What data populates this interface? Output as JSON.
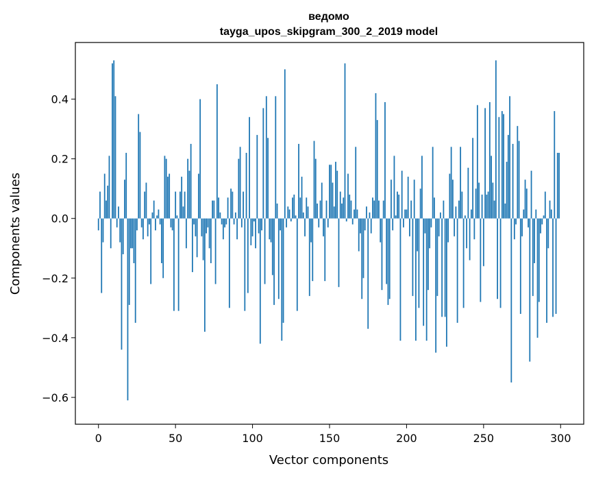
{
  "chart_data": {
    "type": "bar",
    "title": "ведомо",
    "subtitle": "tayga_upos_skipgram_300_2_2019 model",
    "xlabel": "Vector components",
    "ylabel": "Components values",
    "xlim": [
      -15,
      315
    ],
    "ylim": [
      -0.69,
      0.59
    ],
    "xticks": [
      0,
      50,
      100,
      150,
      200,
      250,
      300
    ],
    "xtick_labels": [
      "0",
      "50",
      "100",
      "150",
      "200",
      "250",
      "300"
    ],
    "yticks": [
      -0.6,
      -0.4,
      -0.2,
      0.0,
      0.2,
      0.4
    ],
    "ytick_labels": [
      "−0.6",
      "−0.4",
      "−0.2",
      "0.0",
      "0.2",
      "0.4"
    ],
    "grid": false,
    "bar_color": "#1f77b4",
    "x_start": 0,
    "values": [
      -0.04,
      0.09,
      -0.25,
      -0.08,
      0.15,
      0.06,
      0.11,
      0.21,
      -0.1,
      0.52,
      0.53,
      0.41,
      -0.03,
      0.04,
      -0.08,
      -0.44,
      -0.12,
      0.13,
      0.22,
      -0.61,
      -0.29,
      -0.1,
      -0.1,
      -0.15,
      -0.35,
      -0.04,
      0.35,
      0.29,
      -0.03,
      -0.07,
      0.09,
      0.12,
      -0.06,
      -0.02,
      -0.22,
      0.02,
      0.06,
      -0.04,
      0.01,
      0.03,
      -0.02,
      -0.15,
      -0.2,
      0.21,
      0.2,
      0.14,
      0.15,
      -0.03,
      -0.04,
      -0.31,
      0.09,
      0.01,
      -0.31,
      0.09,
      0.14,
      0.04,
      0.09,
      -0.1,
      0.2,
      0.16,
      0.25,
      -0.18,
      -0.02,
      -0.06,
      -0.13,
      0.15,
      0.4,
      -0.06,
      -0.14,
      -0.38,
      -0.05,
      -0.03,
      -0.1,
      -0.15,
      0.06,
      0.06,
      -0.22,
      0.45,
      0.07,
      0.02,
      -0.02,
      -0.07,
      -0.03,
      -0.02,
      0.07,
      -0.3,
      0.1,
      0.09,
      -0.02,
      0.02,
      -0.07,
      0.2,
      0.24,
      -0.03,
      0.09,
      -0.31,
      0.22,
      -0.25,
      0.34,
      -0.09,
      -0.06,
      -0.01,
      -0.1,
      0.28,
      -0.05,
      -0.42,
      -0.04,
      0.37,
      -0.22,
      0.41,
      0.27,
      -0.07,
      -0.08,
      -0.19,
      -0.29,
      0.41,
      0.05,
      -0.27,
      -0.04,
      -0.41,
      -0.35,
      0.5,
      -0.03,
      0.04,
      0.03,
      -0.01,
      0.07,
      0.08,
      0.01,
      -0.31,
      0.25,
      0.07,
      0.14,
      0.02,
      -0.06,
      0.07,
      0.04,
      -0.26,
      -0.08,
      -0.21,
      0.26,
      0.2,
      0.05,
      -0.03,
      0.06,
      0.12,
      -0.06,
      -0.21,
      0.06,
      -0.03,
      0.18,
      0.18,
      0.12,
      0.04,
      0.19,
      0.16,
      -0.23,
      0.09,
      0.05,
      0.07,
      0.52,
      -0.01,
      0.15,
      0.08,
      0.06,
      -0.02,
      0.03,
      0.24,
      0.03,
      -0.11,
      -0.05,
      -0.27,
      -0.2,
      -0.04,
      0.04,
      -0.37,
      0.02,
      -0.05,
      0.07,
      0.06,
      0.42,
      0.33,
      0.06,
      -0.08,
      -0.24,
      0.06,
      0.39,
      -0.22,
      -0.29,
      -0.27,
      0.13,
      -0.04,
      0.21,
      0.01,
      0.09,
      0.08,
      -0.41,
      0.16,
      -0.03,
      0.03,
      0.03,
      0.14,
      -0.06,
      0.06,
      -0.26,
      0.13,
      -0.41,
      -0.11,
      -0.3,
      0.1,
      0.21,
      -0.36,
      -0.05,
      -0.41,
      -0.24,
      -0.1,
      -0.03,
      0.24,
      0.07,
      -0.45,
      -0.26,
      -0.06,
      0.02,
      -0.33,
      0.06,
      -0.33,
      -0.43,
      -0.08,
      0.15,
      0.24,
      0.13,
      -0.06,
      0.04,
      -0.35,
      0.06,
      0.24,
      0.09,
      -0.3,
      0.01,
      -0.1,
      0.17,
      -0.14,
      0.03,
      0.27,
      -0.07,
      0.1,
      0.38,
      0.12,
      -0.28,
      0.08,
      -0.16,
      0.37,
      0.08,
      0.09,
      0.39,
      0.21,
      0.12,
      0.06,
      0.53,
      -0.27,
      0.34,
      -0.3,
      0.36,
      0.35,
      0.05,
      0.19,
      0.28,
      0.41,
      -0.55,
      0.25,
      -0.07,
      -0.02,
      0.31,
      0.26,
      -0.32,
      -0.06,
      0.03,
      0.13,
      0.1,
      -0.03,
      -0.48,
      0.16,
      -0.26,
      -0.15,
      0.03,
      -0.4,
      -0.28,
      -0.05,
      -0.02,
      0.01,
      0.09,
      -0.35,
      -0.1,
      0.06,
      0.03,
      -0.33,
      0.36,
      -0.32,
      0.22,
      0.22
    ]
  }
}
